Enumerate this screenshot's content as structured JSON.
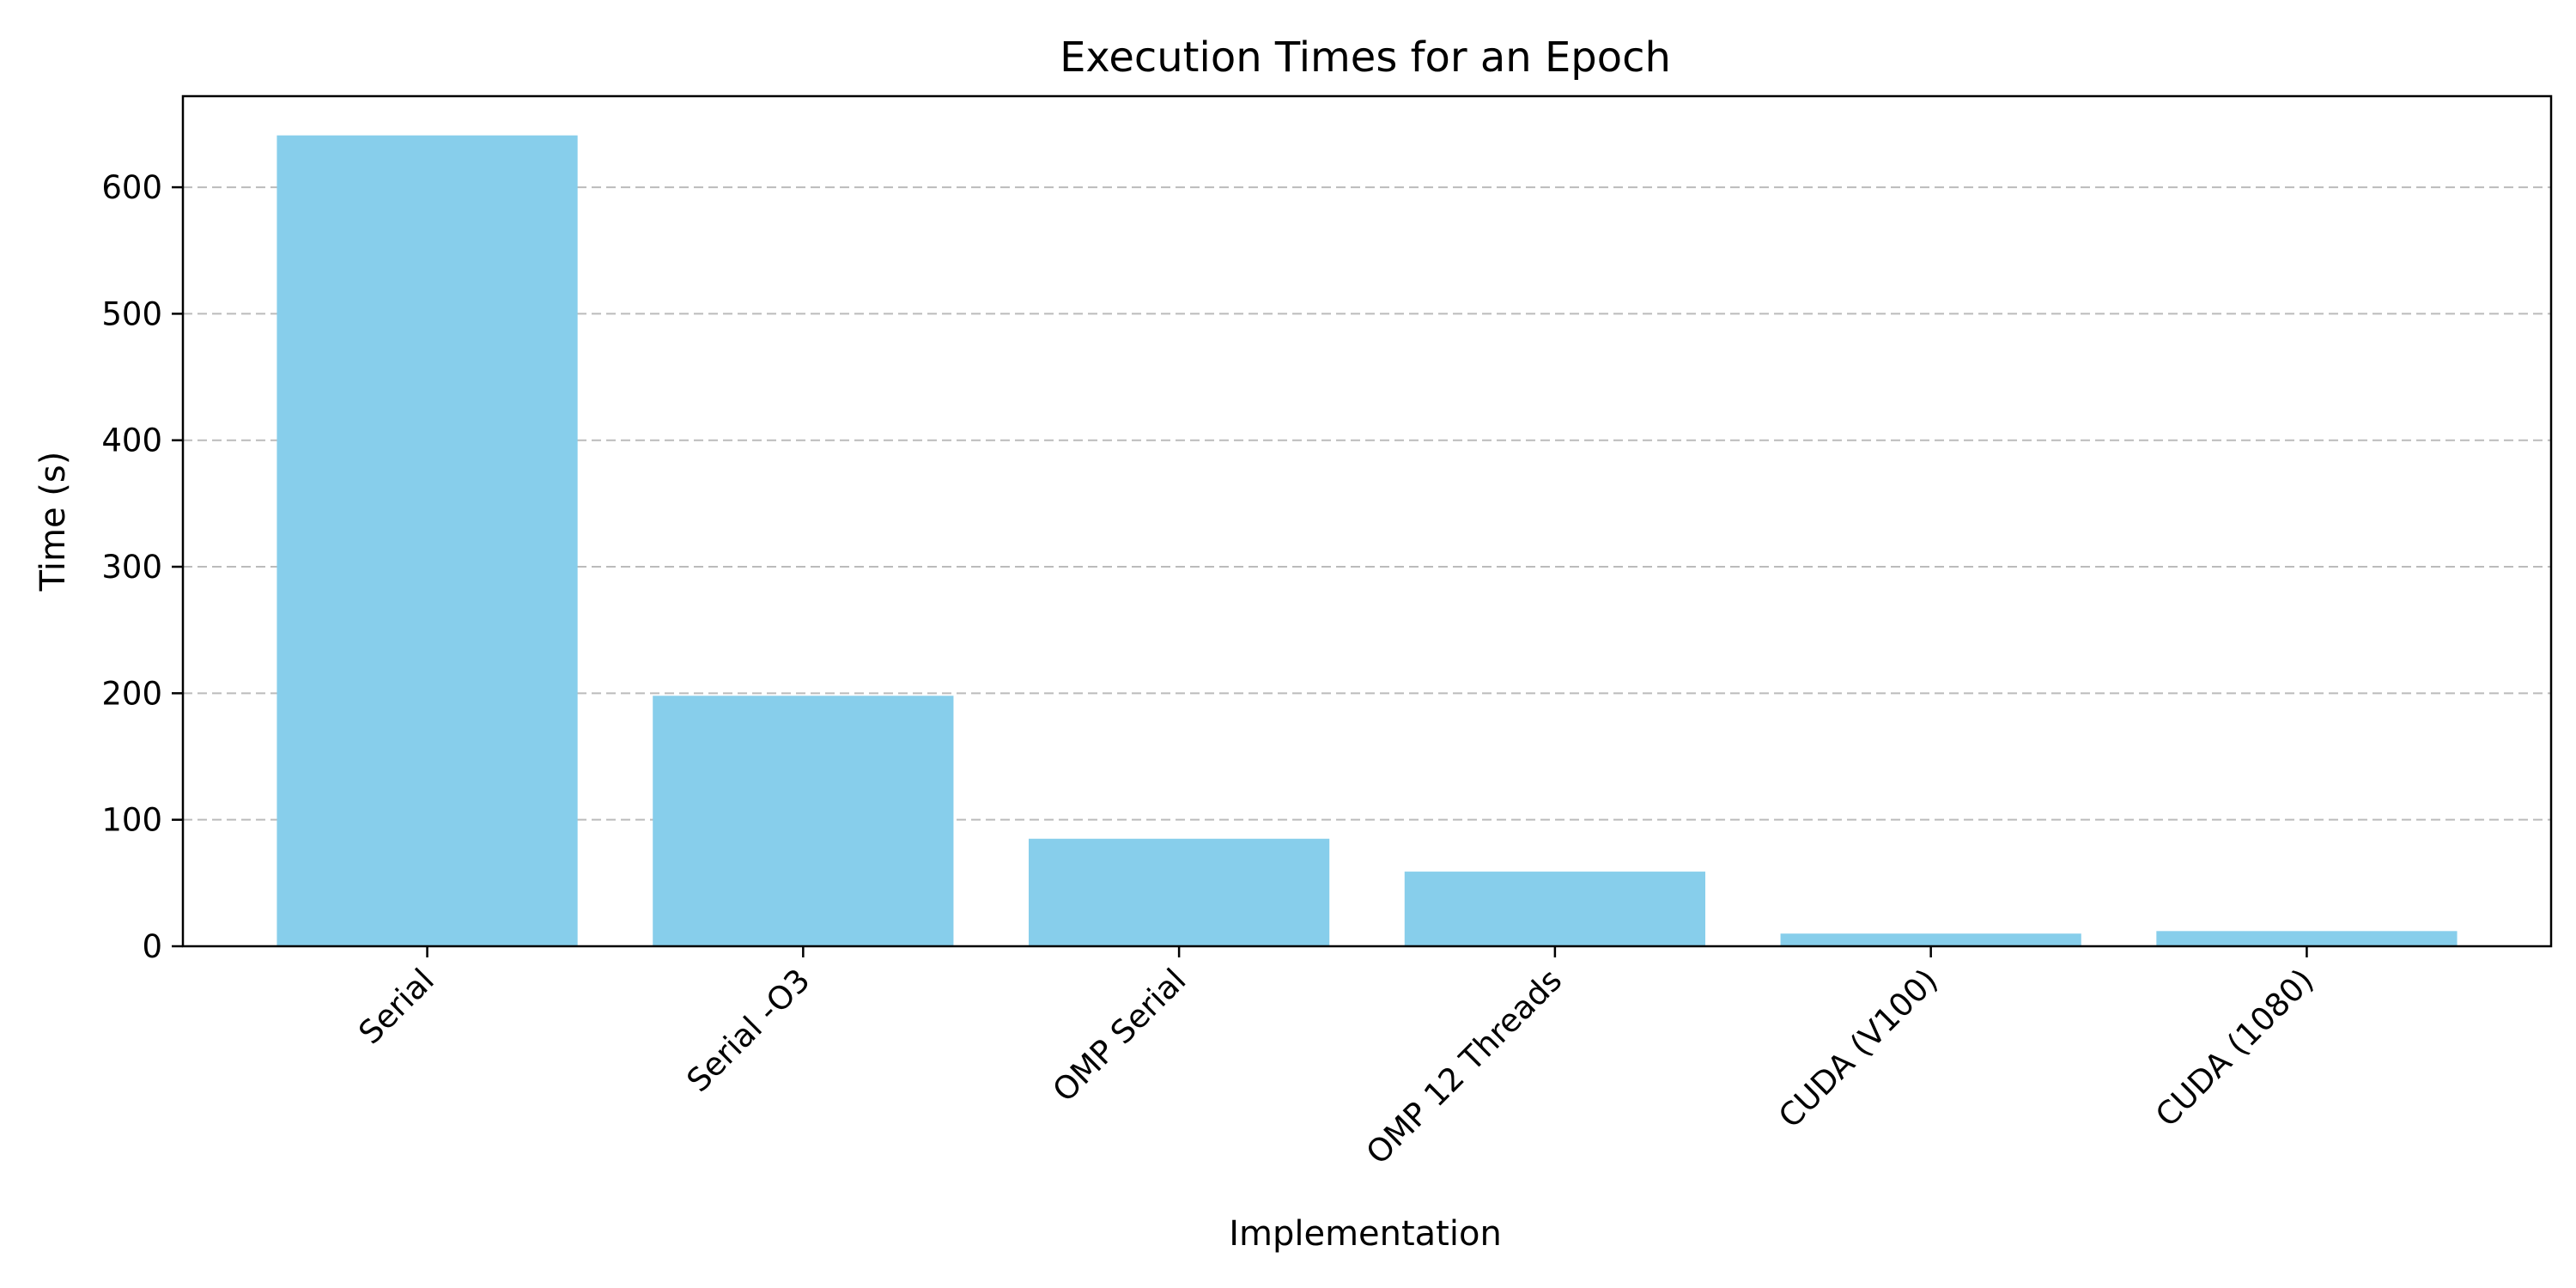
{
  "chart_data": {
    "type": "bar",
    "title": "Execution Times for an Epoch",
    "xlabel": "Implementation",
    "ylabel": "Time (s)",
    "categories": [
      "Serial",
      "Serial -O3",
      "OMP Serial",
      "OMP 12 Threads",
      "CUDA (V100)",
      "CUDA (1080)"
    ],
    "values": [
      641,
      198,
      85,
      59,
      10,
      12
    ],
    "ylim": [
      0,
      672
    ],
    "yticks": [
      0,
      100,
      200,
      300,
      400,
      500,
      600
    ],
    "grid": "y-dashed",
    "bar_color": "#87CEEB",
    "grid_color": "#bbbbbb",
    "axis_color": "#000000"
  }
}
